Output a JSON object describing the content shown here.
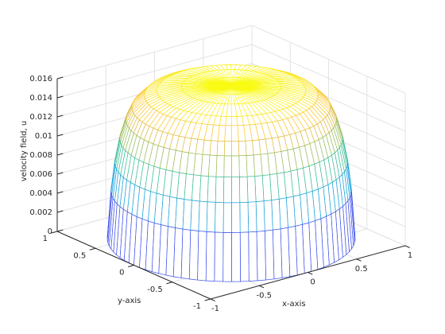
{
  "chart_data": {
    "type": "mesh3d",
    "xlabel": "x-axis",
    "ylabel": "y-axis",
    "zlabel": "velocity field, u",
    "r": [
      0,
      0.2,
      0.4,
      0.6,
      0.7,
      0.8,
      0.85,
      0.9,
      0.94,
      0.97,
      1
    ],
    "values": [
      0.016,
      0.016,
      0.0159,
      0.0155,
      0.015,
      0.0138,
      0.0125,
      0.0105,
      0.008,
      0.005,
      0
    ],
    "xlim": [
      -1,
      1
    ],
    "ylim": [
      -1,
      1
    ],
    "zlim": [
      0,
      0.016
    ],
    "xticks": [
      -1,
      -0.5,
      0,
      0.5,
      1
    ],
    "yticks": [
      -1,
      -0.5,
      0,
      0.5,
      1
    ],
    "zticks": [
      0,
      0.002,
      0.004,
      0.006,
      0.008,
      0.01,
      0.012,
      0.014,
      0.016
    ],
    "grid": true,
    "colormap": "parula"
  }
}
